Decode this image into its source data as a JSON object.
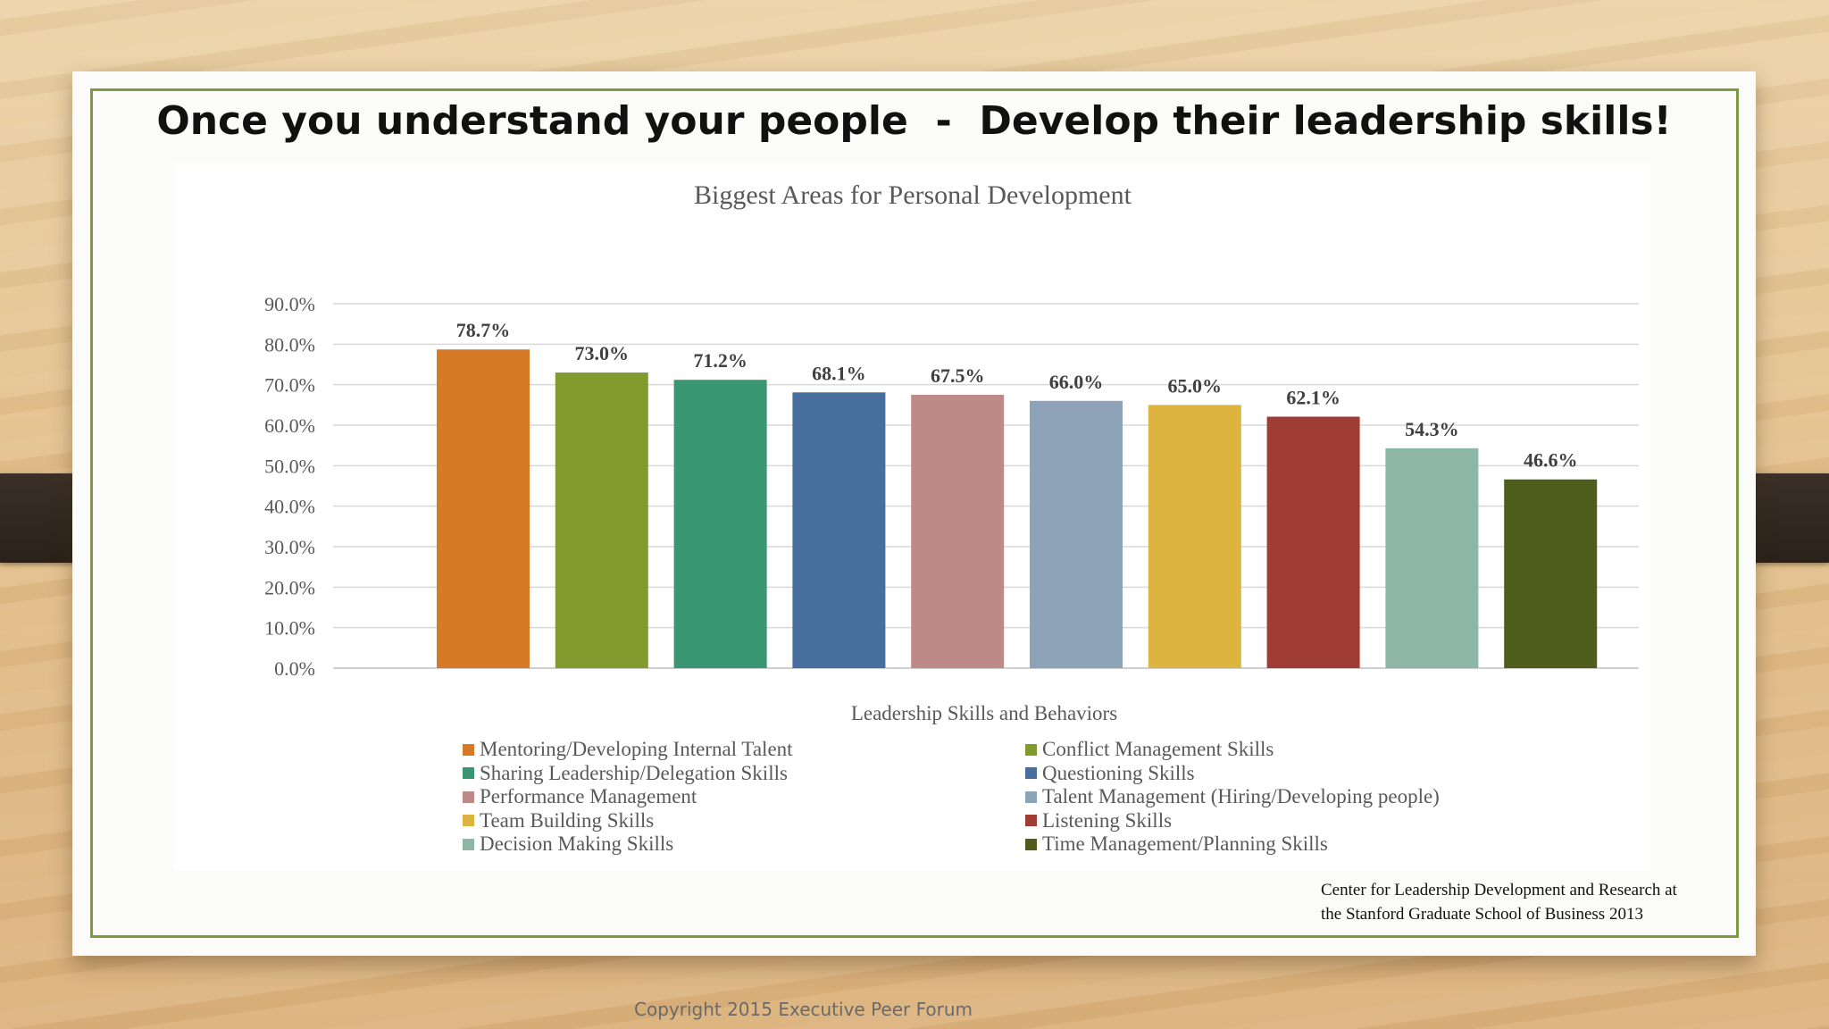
{
  "slide": {
    "title": "Once you understand your people  -  Develop their leadership skills!",
    "source_line1": "Center for Leadership Development and Research at",
    "source_line2": "the Stanford Graduate School of Business 2013",
    "copyright": "Copyright 2015 Executive Peer Forum"
  },
  "chart_data": {
    "type": "bar",
    "title": "Biggest Areas for Personal Development",
    "xlabel": "Leadership Skills and Behaviors",
    "ylabel": "",
    "ylim": [
      0,
      90
    ],
    "yticks": [
      "0.0%",
      "10.0%",
      "20.0%",
      "30.0%",
      "40.0%",
      "50.0%",
      "60.0%",
      "70.0%",
      "80.0%",
      "90.0%"
    ],
    "grid": true,
    "legend_position": "bottom",
    "categories": [
      "Mentoring/Developing Internal Talent",
      "Conflict Management Skills",
      "Sharing Leadership/Delegation Skills",
      "Questioning Skills",
      "Performance Management",
      "Talent Management (Hiring/Developing people)",
      "Team Building Skills",
      "Listening Skills",
      "Decision Making Skills",
      "Time Management/Planning Skills"
    ],
    "values": [
      78.7,
      73.0,
      71.2,
      68.1,
      67.5,
      66.0,
      65.0,
      62.1,
      54.3,
      46.6
    ],
    "labels": [
      "78.7%",
      "73.0%",
      "71.2%",
      "68.1%",
      "67.5%",
      "66.0%",
      "65.0%",
      "62.1%",
      "54.3%",
      "46.6%"
    ],
    "colors": [
      "#d77a27",
      "#819b2f",
      "#3a9672",
      "#466f9e",
      "#bd8a87",
      "#8ea2b8",
      "#ddb43f",
      "#9f3c34",
      "#8db7a4",
      "#4e5c1c"
    ]
  }
}
